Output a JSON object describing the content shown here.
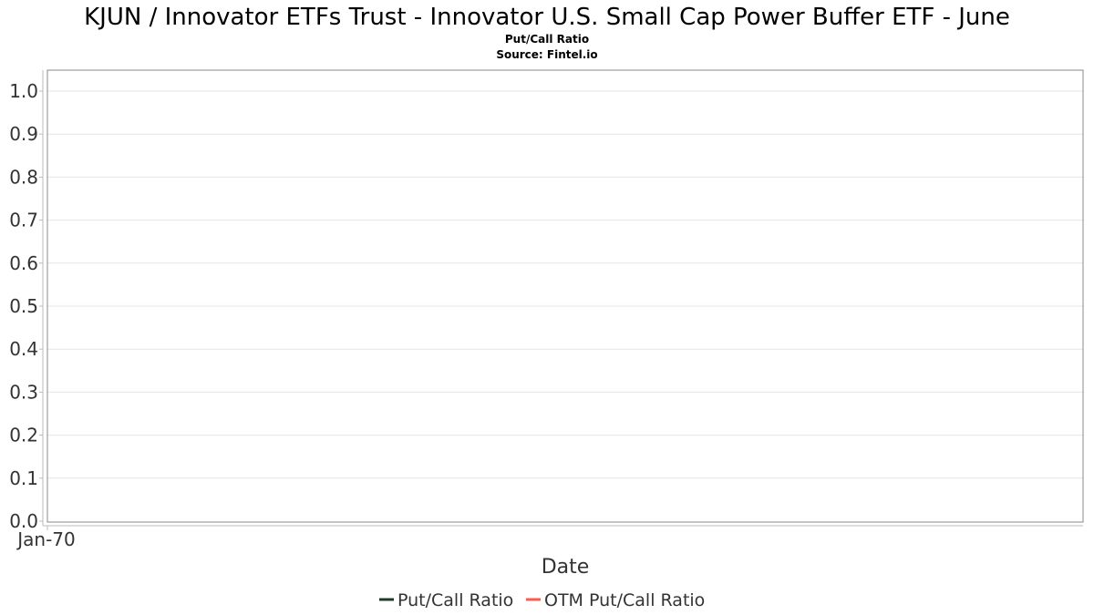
{
  "chart_data": {
    "type": "line",
    "title": "KJUN / Innovator ETFs Trust - Innovator U.S. Small Cap Power Buffer ETF - June",
    "subtitle": "Put/Call Ratio",
    "source": "Source: Fintel.io",
    "xlabel": "Date",
    "ylabel": "",
    "x_ticks": [
      "Jan-70"
    ],
    "y_ticks": [
      "0.0",
      "0.1",
      "0.2",
      "0.3",
      "0.4",
      "0.5",
      "0.6",
      "0.7",
      "0.8",
      "0.9",
      "1.0"
    ],
    "ylim": [
      0,
      1.05
    ],
    "grid": true,
    "legend_position": "bottom",
    "series": [
      {
        "name": "Put/Call Ratio",
        "color": "#1f3a2a",
        "values": []
      },
      {
        "name": "OTM Put/Call Ratio",
        "color": "#ff5a4a",
        "values": []
      }
    ]
  }
}
